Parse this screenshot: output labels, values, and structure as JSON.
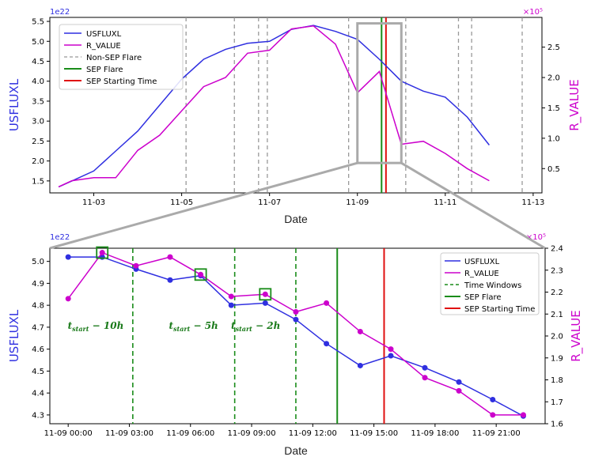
{
  "chart_data": [
    {
      "type": "line",
      "xlabel": "Date",
      "ylabel_left": "USFLUXL",
      "ylabel_right": "R_VALUE",
      "left_exponent": "1e22",
      "right_exponent": "×10⁵",
      "xlim": [
        2.0,
        13.2
      ],
      "ylim_left": [
        1.2,
        5.6
      ],
      "ylim_right": [
        0.1,
        2.99
      ],
      "x_ticks": [
        3,
        5,
        7,
        9,
        11,
        13
      ],
      "x_tick_labels": [
        "11-03",
        "11-05",
        "11-07",
        "11-09",
        "11-11",
        "11-13"
      ],
      "left_ticks": [
        1.5,
        2.0,
        2.5,
        3.0,
        3.5,
        4.0,
        4.5,
        5.0,
        5.5
      ],
      "left_tick_labels": [
        "1.5",
        "2.0",
        "2.5",
        "3.0",
        "3.5",
        "4.0",
        "4.5",
        "5.0",
        "5.5"
      ],
      "right_ticks": [
        0.5,
        1.0,
        1.5,
        2.0,
        2.5
      ],
      "right_tick_labels": [
        "0.5",
        "1.0",
        "1.5",
        "2.0",
        "2.5"
      ],
      "legend": [
        "USFLUXL",
        "R_VALUE",
        "Non-SEP Flare",
        "SEP Flare",
        "SEP Starting Time"
      ],
      "series": [
        {
          "name": "USFLUXL",
          "axis": "left",
          "color": "#2f2fe0",
          "x": [
            2.2,
            2.5,
            3.0,
            3.5,
            4.0,
            4.5,
            5.0,
            5.5,
            6.0,
            6.5,
            7.0,
            7.5,
            8.0,
            8.5,
            9.0,
            9.5,
            10.0,
            10.5,
            11.0,
            11.5,
            12.0
          ],
          "y": [
            1.35,
            1.5,
            1.75,
            2.25,
            2.75,
            3.4,
            4.05,
            4.55,
            4.8,
            4.95,
            5.0,
            5.3,
            5.4,
            5.25,
            5.05,
            4.55,
            4.0,
            3.75,
            3.6,
            3.1,
            2.4
          ]
        },
        {
          "name": "R_VALUE",
          "axis": "right",
          "color": "#cc00cc",
          "x": [
            2.2,
            2.5,
            3.0,
            3.5,
            4.0,
            4.5,
            5.0,
            5.5,
            6.0,
            6.5,
            7.0,
            7.5,
            8.0,
            8.5,
            9.0,
            9.5,
            10.0,
            10.5,
            11.0,
            11.5,
            12.0
          ],
          "y": [
            0.2,
            0.3,
            0.35,
            0.35,
            0.8,
            1.05,
            1.45,
            1.85,
            2.0,
            2.4,
            2.45,
            2.8,
            2.85,
            2.55,
            1.75,
            2.1,
            0.9,
            0.95,
            0.75,
            0.5,
            0.3
          ]
        }
      ],
      "non_sep_flares": [
        5.1,
        6.2,
        6.75,
        6.95,
        8.8,
        10.1,
        11.3,
        11.6,
        12.75
      ],
      "sep_flare": 9.55,
      "sep_start": 9.65,
      "zoom_box": {
        "x": [
          9.0,
          10.0
        ],
        "y_left": [
          1.95,
          5.45
        ]
      }
    },
    {
      "type": "line",
      "xlabel": "Date",
      "ylabel_left": "USFLUXL",
      "ylabel_right": "R_VALUE",
      "left_exponent": "1e22",
      "right_exponent": "×10⁵",
      "xlim": [
        -0.9,
        23.4
      ],
      "ylim_left": [
        4.26,
        5.06
      ],
      "ylim_right": [
        1.6,
        2.4
      ],
      "x_ticks": [
        0,
        3,
        6,
        9,
        12,
        15,
        18,
        21
      ],
      "x_tick_labels": [
        "11-09 00:00",
        "11-09 03:00",
        "11-09 06:00",
        "11-09 09:00",
        "11-09 12:00",
        "11-09 15:00",
        "11-09 18:00",
        "11-09 21:00"
      ],
      "left_ticks": [
        4.3,
        4.4,
        4.5,
        4.6,
        4.7,
        4.8,
        4.9,
        5.0
      ],
      "left_tick_labels": [
        "4.3",
        "4.4",
        "4.5",
        "4.6",
        "4.7",
        "4.8",
        "4.9",
        "5.0"
      ],
      "right_ticks": [
        1.6,
        1.7,
        1.8,
        1.9,
        2.0,
        2.1,
        2.2,
        2.3,
        2.4
      ],
      "right_tick_labels": [
        "1.6",
        "1.7",
        "1.8",
        "1.9",
        "2.0",
        "2.1",
        "2.2",
        "2.3",
        "2.4"
      ],
      "legend": [
        "USFLUXL",
        "R_VALUE",
        "Time Windows",
        "SEP Flare",
        "SEP Starting Time"
      ],
      "series": [
        {
          "name": "USFLUXL",
          "axis": "left",
          "color": "#2f2fe0",
          "x": [
            0,
            1.67,
            3.33,
            5,
            6.5,
            8,
            9.67,
            11.17,
            12.67,
            14.33,
            15.83,
            17.5,
            19.17,
            20.83,
            22.33
          ],
          "y": [
            5.02,
            5.02,
            4.965,
            4.915,
            4.935,
            4.8,
            4.81,
            4.735,
            4.625,
            4.525,
            4.57,
            4.515,
            4.45,
            4.37,
            4.295
          ]
        },
        {
          "name": "R_VALUE",
          "axis": "right",
          "color": "#cc00cc",
          "x": [
            0,
            1.67,
            3.33,
            5,
            6.5,
            8,
            9.67,
            11.17,
            12.67,
            14.33,
            15.83,
            17.5,
            19.17,
            20.83,
            22.33
          ],
          "y": [
            2.17,
            2.38,
            2.32,
            2.36,
            2.28,
            2.18,
            2.19,
            2.11,
            2.15,
            2.02,
            1.94,
            1.81,
            1.75,
            1.64,
            1.64
          ]
        }
      ],
      "time_windows": [
        3.17,
        8.17,
        11.17
      ],
      "sep_flare": 13.2,
      "sep_start": 15.5,
      "highlight_points": [
        1.67,
        6.5,
        9.67
      ],
      "annotations": [
        {
          "x": 1.35,
          "label": "t",
          "sub": "start",
          "rest": " − 10h"
        },
        {
          "x": 6.15,
          "label": "t",
          "sub": "start",
          "rest": " − 5h"
        },
        {
          "x": 9.2,
          "label": "t",
          "sub": "start",
          "rest": " − 2h"
        }
      ]
    }
  ]
}
